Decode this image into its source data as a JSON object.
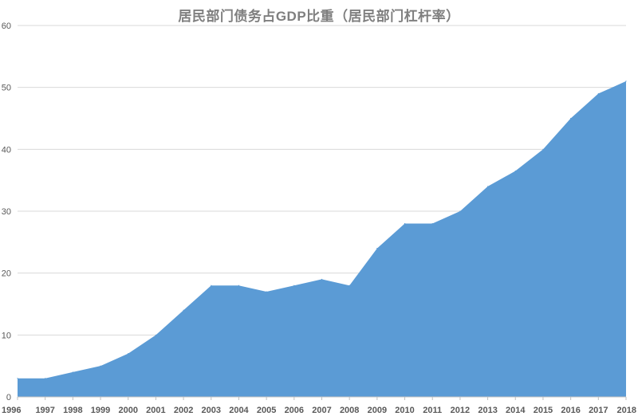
{
  "chart_data": {
    "type": "area",
    "title": "居民部门债务占GDP比重（居民部门杠杆率）",
    "xlabel": "",
    "ylabel": "",
    "ylim": [
      0,
      60
    ],
    "yticks": [
      0,
      10,
      20,
      30,
      40,
      50,
      60
    ],
    "grid": true,
    "legend": "none",
    "color": "#5b9bd5",
    "categories": [
      "1996",
      "1997",
      "1998",
      "1999",
      "2000",
      "2001",
      "2002",
      "2003",
      "2004",
      "2005",
      "2006",
      "2007",
      "2008",
      "2009",
      "2010",
      "2011",
      "2012",
      "2013",
      "2014",
      "2015",
      "2016",
      "2017",
      "2018"
    ],
    "values": [
      3,
      3,
      4,
      5,
      7,
      10,
      14,
      18,
      18,
      17,
      18,
      19,
      18,
      24,
      28,
      28,
      30,
      34,
      36.5,
      40,
      45,
      49,
      51
    ]
  }
}
